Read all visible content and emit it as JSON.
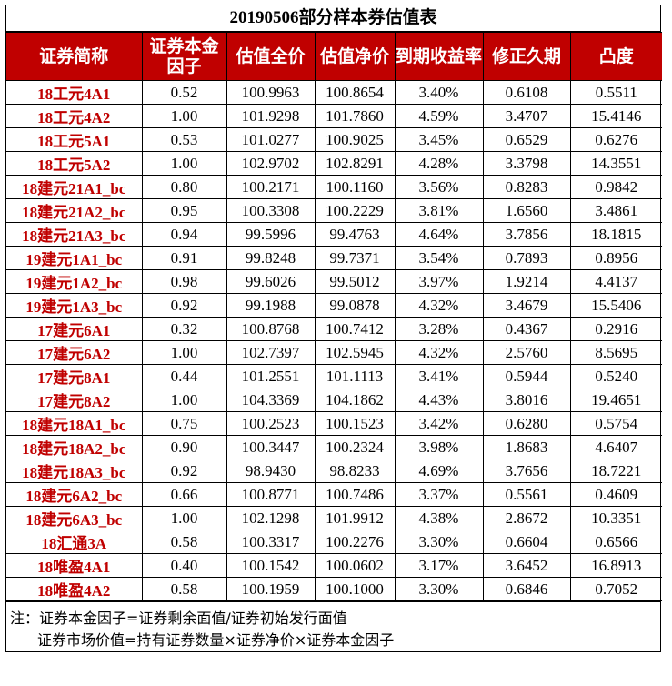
{
  "title": "20190506部分样本券估值表",
  "columns": [
    "证券简称",
    "证券本金因子",
    "估值全价",
    "估值净价",
    "到期收益率",
    "修正久期",
    "凸度"
  ],
  "rows": [
    [
      "18工元4A1",
      "0.52",
      "100.9963",
      "100.8654",
      "3.40%",
      "0.6108",
      "0.5511"
    ],
    [
      "18工元4A2",
      "1.00",
      "101.9298",
      "101.7860",
      "4.59%",
      "3.4707",
      "15.4146"
    ],
    [
      "18工元5A1",
      "0.53",
      "101.0277",
      "100.9025",
      "3.45%",
      "0.6529",
      "0.6276"
    ],
    [
      "18工元5A2",
      "1.00",
      "102.9702",
      "102.8291",
      "4.28%",
      "3.3798",
      "14.3551"
    ],
    [
      "18建元21A1_bc",
      "0.80",
      "100.2171",
      "100.1160",
      "3.56%",
      "0.8283",
      "0.9842"
    ],
    [
      "18建元21A2_bc",
      "0.95",
      "100.3308",
      "100.2229",
      "3.81%",
      "1.6560",
      "3.4861"
    ],
    [
      "18建元21A3_bc",
      "0.94",
      "99.5996",
      "99.4763",
      "4.64%",
      "3.7856",
      "18.1815"
    ],
    [
      "19建元1A1_bc",
      "0.91",
      "99.8248",
      "99.7371",
      "3.54%",
      "0.7893",
      "0.8956"
    ],
    [
      "19建元1A2_bc",
      "0.98",
      "99.6026",
      "99.5012",
      "3.97%",
      "1.9214",
      "4.4137"
    ],
    [
      "19建元1A3_bc",
      "0.92",
      "99.1988",
      "99.0878",
      "4.32%",
      "3.4679",
      "15.5406"
    ],
    [
      "17建元6A1",
      "0.32",
      "100.8768",
      "100.7412",
      "3.28%",
      "0.4367",
      "0.2916"
    ],
    [
      "17建元6A2",
      "1.00",
      "102.7397",
      "102.5945",
      "4.32%",
      "2.5760",
      "8.5695"
    ],
    [
      "17建元8A1",
      "0.44",
      "101.2551",
      "101.1113",
      "3.41%",
      "0.5944",
      "0.5240"
    ],
    [
      "17建元8A2",
      "1.00",
      "104.3369",
      "104.1862",
      "4.43%",
      "3.8016",
      "19.4651"
    ],
    [
      "18建元18A1_bc",
      "0.75",
      "100.2523",
      "100.1523",
      "3.42%",
      "0.6280",
      "0.5754"
    ],
    [
      "18建元18A2_bc",
      "0.90",
      "100.3447",
      "100.2324",
      "3.98%",
      "1.8683",
      "4.6407"
    ],
    [
      "18建元18A3_bc",
      "0.92",
      "98.9430",
      "98.8233",
      "4.69%",
      "3.7656",
      "18.7221"
    ],
    [
      "18建元6A2_bc",
      "0.66",
      "100.8771",
      "100.7486",
      "3.37%",
      "0.5561",
      "0.4609"
    ],
    [
      "18建元6A3_bc",
      "1.00",
      "102.1298",
      "101.9912",
      "4.38%",
      "2.8672",
      "10.3351"
    ],
    [
      "18汇通3A",
      "0.58",
      "100.3317",
      "100.2276",
      "3.30%",
      "0.6604",
      "0.6566"
    ],
    [
      "18唯盈4A1",
      "0.40",
      "100.1542",
      "100.0602",
      "3.17%",
      "3.6452",
      "16.8913"
    ],
    [
      "18唯盈4A2",
      "0.58",
      "100.1959",
      "100.1000",
      "3.30%",
      "0.6846",
      "0.7052"
    ]
  ],
  "notes": {
    "line1": "注：证券本金因子=证券剩余面值/证券初始发行面值",
    "line2": "证券市场价值=持有证券数量×证券净价×证券本金因子"
  },
  "colors": {
    "header_bg": "#c00000",
    "header_text": "#ffffff",
    "name_text": "#c00000"
  }
}
